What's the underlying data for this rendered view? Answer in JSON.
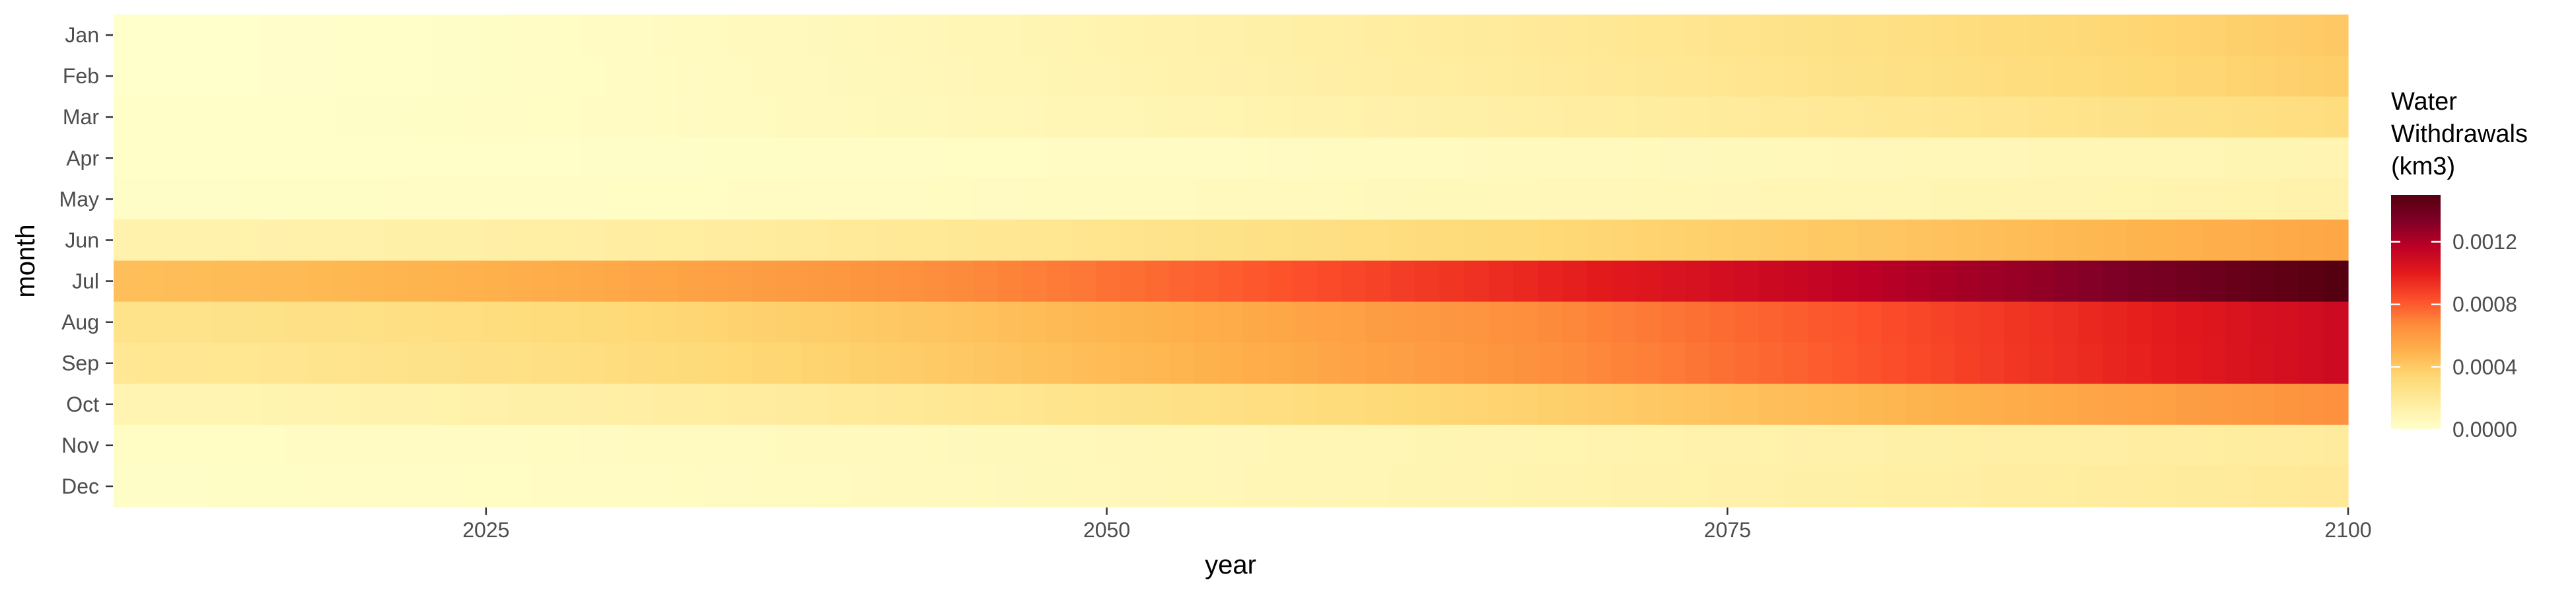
{
  "chart_data": {
    "type": "heatmap",
    "xlabel": "year",
    "ylabel": "month",
    "x_range": [
      2010,
      2100
    ],
    "x_ticks": [
      2025,
      2050,
      2075,
      2100
    ],
    "x_tick_labels": [
      "2025",
      "2050",
      "2075",
      "2100"
    ],
    "months": [
      "Jan",
      "Feb",
      "Mar",
      "Apr",
      "May",
      "Jun",
      "Jul",
      "Aug",
      "Sep",
      "Oct",
      "Nov",
      "Dec"
    ],
    "grid": false,
    "legend": {
      "title_lines": [
        "Water",
        "Withdrawals",
        "(km3)"
      ],
      "position": "right",
      "range": [
        0,
        0.0015
      ],
      "ticks": [
        0,
        0.0004,
        0.0008,
        0.0012
      ],
      "tick_labels": [
        "0.0000",
        "0.0004",
        "0.0008",
        "0.0012"
      ]
    },
    "colors": [
      "#ffffcc",
      "#ffeda0",
      "#fed976",
      "#feb24c",
      "#fd8d3c",
      "#fc4e2a",
      "#e31a1c",
      "#bd0026",
      "#800026",
      "#550010"
    ],
    "series": [
      {
        "name": "Jan",
        "start_value": 0.0,
        "end_value": 0.0004
      },
      {
        "name": "Feb",
        "start_value": 0.0,
        "end_value": 0.00038
      },
      {
        "name": "Mar",
        "start_value": 1e-05,
        "end_value": 0.0003
      },
      {
        "name": "Apr",
        "start_value": 1e-05,
        "end_value": 0.0001
      },
      {
        "name": "May",
        "start_value": 2e-05,
        "end_value": 0.00012
      },
      {
        "name": "Jun",
        "start_value": 0.00012,
        "end_value": 0.00055
      },
      {
        "name": "Jul",
        "start_value": 0.00045,
        "end_value": 0.0015
      },
      {
        "name": "Aug",
        "start_value": 0.00025,
        "end_value": 0.0011
      },
      {
        "name": "Sep",
        "start_value": 0.00022,
        "end_value": 0.0011
      },
      {
        "name": "Oct",
        "start_value": 0.0001,
        "end_value": 0.00065
      },
      {
        "name": "Nov",
        "start_value": 3e-05,
        "end_value": 0.00018
      },
      {
        "name": "Dec",
        "start_value": 2e-05,
        "end_value": 0.0002
      }
    ]
  }
}
